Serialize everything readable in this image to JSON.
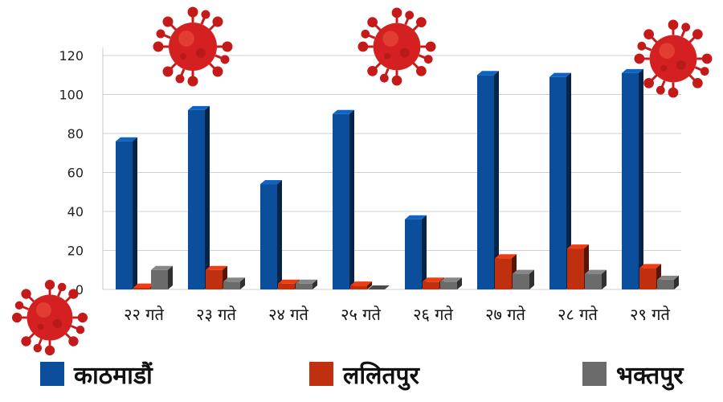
{
  "chart_data": {
    "type": "bar",
    "categories": [
      "२२ गते",
      "२३ गते",
      "२४ गते",
      "२५ गते",
      "२६ गते",
      "२७ गते",
      "२८ गते",
      "२९ गते"
    ],
    "series": [
      {
        "name": "काठमाडौं",
        "color": "#0b4f9c",
        "values": [
          76,
          92,
          54,
          90,
          36,
          110,
          109,
          111
        ]
      },
      {
        "name": "ललितपुर",
        "color": "#c0300e",
        "values": [
          1,
          10,
          3,
          2,
          4,
          16,
          21,
          11
        ]
      },
      {
        "name": "भक्तपुर",
        "color": "#6b6b6b",
        "values": [
          10,
          4,
          3,
          0,
          4,
          8,
          8,
          5
        ]
      }
    ],
    "yticks": [
      0,
      20,
      40,
      60,
      80,
      100,
      120
    ],
    "ylim": [
      0,
      120
    ],
    "grid": true,
    "legend": "bottom"
  },
  "decorations": {
    "virus_icon": "coronavirus-icon",
    "virus_color": "#d42020"
  }
}
